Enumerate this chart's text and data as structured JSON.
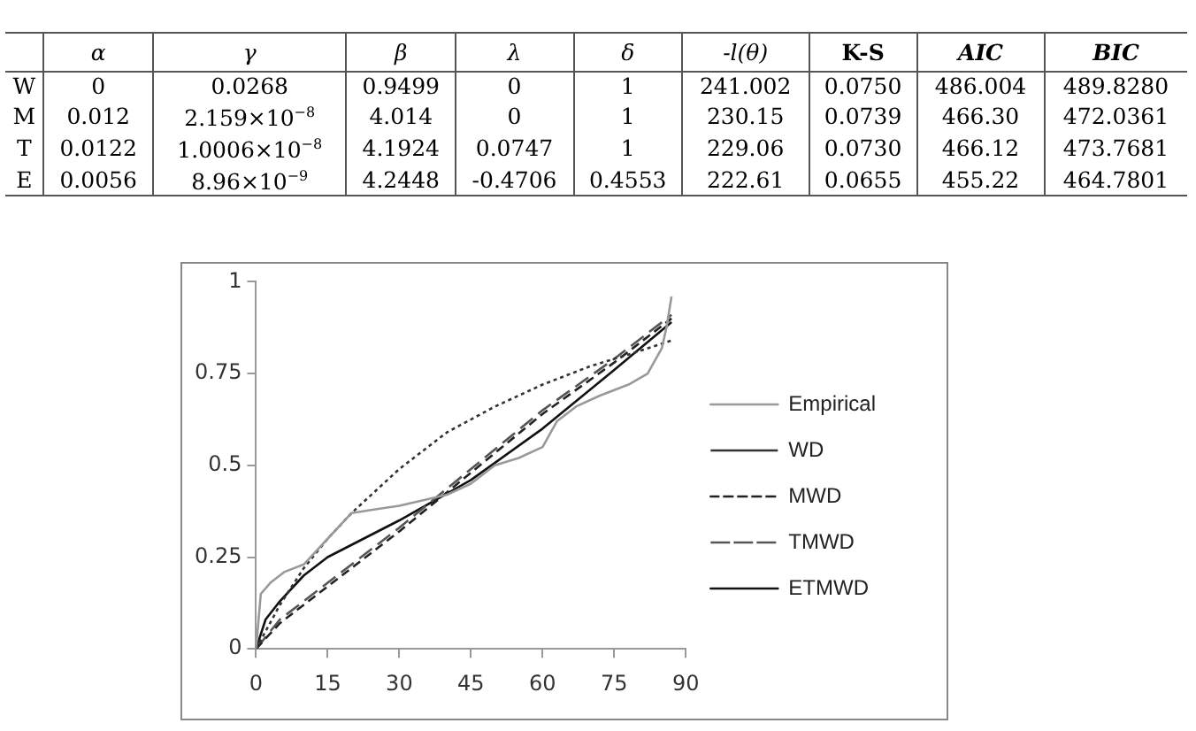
{
  "chart_data": [
    {
      "type": "other",
      "categories": [
        "α",
        "γ",
        "β",
        "λ",
        "δ",
        "-l(θ)",
        "K-S",
        "AIC",
        "BIC"
      ],
      "y_categories": [
        "W",
        "M",
        "T",
        "E"
      ],
      "cell_labels": [
        [
          "0",
          "0.0268",
          "0.9499",
          "0",
          "1",
          "241.002",
          "0.0750",
          "486.004",
          "489.8280"
        ],
        [
          "0.012",
          "2.159×10$^{−8}$",
          "4.014",
          "0",
          "1",
          "230.15",
          "0.0739",
          "466.30",
          "472.0361"
        ],
        [
          "0.0122",
          "1.0006×10$^{−8}$",
          "4.1924",
          "0.0747",
          "1",
          "229.06",
          "0.0730",
          "466.12",
          "473.7681"
        ],
        [
          "0.0056",
          "8.96×10$^{−9}$",
          "4.2448",
          "-0.4706",
          "0.4553",
          "222.61",
          "0.0655",
          "455.22",
          "464.7801"
        ]
      ]
    },
    {
      "type": "line",
      "xlim": [
        0,
        90
      ],
      "xticks": [
        0,
        15,
        30,
        45,
        60,
        75,
        90
      ],
      "ylim": [
        0,
        1
      ],
      "yticks": [
        0,
        0.25,
        0.5,
        0.75,
        1
      ],
      "grid": false,
      "legend": "right",
      "marker": "none",
      "series": [
        {
          "name": "Empirical",
          "color": "#999999",
          "line_style": "solid",
          "x": [
            0,
            1,
            3,
            6,
            10,
            15,
            20,
            25,
            30,
            40,
            45,
            50,
            55,
            60,
            63,
            67,
            72,
            78,
            82,
            85,
            86,
            87
          ],
          "values": [
            0,
            0.15,
            0.18,
            0.21,
            0.23,
            0.3,
            0.37,
            0.38,
            0.39,
            0.42,
            0.45,
            0.5,
            0.52,
            0.55,
            0.62,
            0.66,
            0.69,
            0.72,
            0.75,
            0.82,
            0.88,
            0.96
          ]
        },
        {
          "name": "WD",
          "color": "#333333",
          "line_style": "dotted",
          "x": [
            0,
            5,
            10,
            15,
            20,
            30,
            40,
            50,
            60,
            70,
            80,
            87
          ],
          "values": [
            0,
            0.12,
            0.22,
            0.3,
            0.37,
            0.49,
            0.59,
            0.66,
            0.72,
            0.77,
            0.81,
            0.84
          ]
        },
        {
          "name": "MWD",
          "color": "#222222",
          "line_style": "dashed",
          "x": [
            0,
            5,
            15,
            30,
            45,
            60,
            75,
            87
          ],
          "values": [
            0,
            0.07,
            0.17,
            0.32,
            0.48,
            0.64,
            0.78,
            0.9
          ]
        },
        {
          "name": "TMWD",
          "color": "#555555",
          "line_style": "dashed",
          "x": [
            0,
            5,
            15,
            30,
            45,
            60,
            75,
            87
          ],
          "values": [
            0,
            0.08,
            0.18,
            0.33,
            0.49,
            0.65,
            0.79,
            0.91
          ]
        },
        {
          "name": "ETMWD",
          "color": "#111111",
          "line_style": "solid",
          "x": [
            0,
            2,
            5,
            10,
            15,
            30,
            45,
            60,
            75,
            87
          ],
          "values": [
            0,
            0.08,
            0.13,
            0.2,
            0.25,
            0.35,
            0.46,
            0.6,
            0.76,
            0.89
          ]
        }
      ]
    }
  ]
}
